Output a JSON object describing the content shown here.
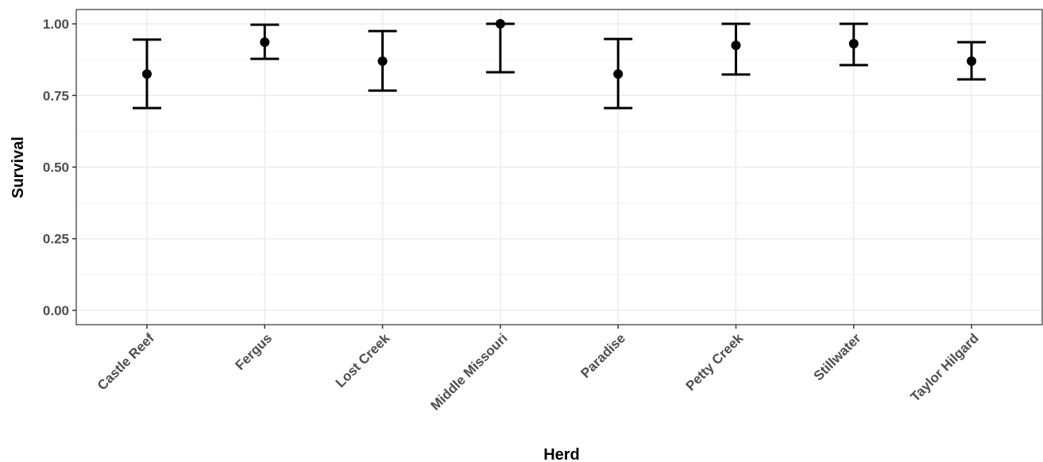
{
  "chart_data": {
    "type": "errorbar",
    "x_label": "Herd",
    "y_label": "Survival",
    "categories": [
      "Castle Reef",
      "Fergus",
      "Lost Creek",
      "Middle Missouri",
      "Paradise",
      "Petty Creek",
      "Stillwater",
      "Taylor Hilgard"
    ],
    "values": [
      0.825,
      0.936,
      0.87,
      1.0,
      0.825,
      0.925,
      0.931,
      0.87
    ],
    "lower": [
      0.706,
      0.878,
      0.767,
      0.831,
      0.706,
      0.823,
      0.856,
      0.806
    ],
    "upper": [
      0.945,
      0.997,
      0.975,
      1.0,
      0.947,
      1.0,
      1.0,
      0.936
    ],
    "color": "#000000",
    "ylim": [
      -0.05,
      1.05
    ],
    "yticks": [
      {
        "value": 0,
        "label": "0.00"
      },
      0.25,
      {
        "value": 0.5,
        "label": "0.50"
      },
      0.75,
      {
        "value": 1,
        "label": "1.00"
      }
    ],
    "minor_yticks": [
      0.125,
      0.375,
      0.625,
      0.875
    ],
    "grid": true
  }
}
